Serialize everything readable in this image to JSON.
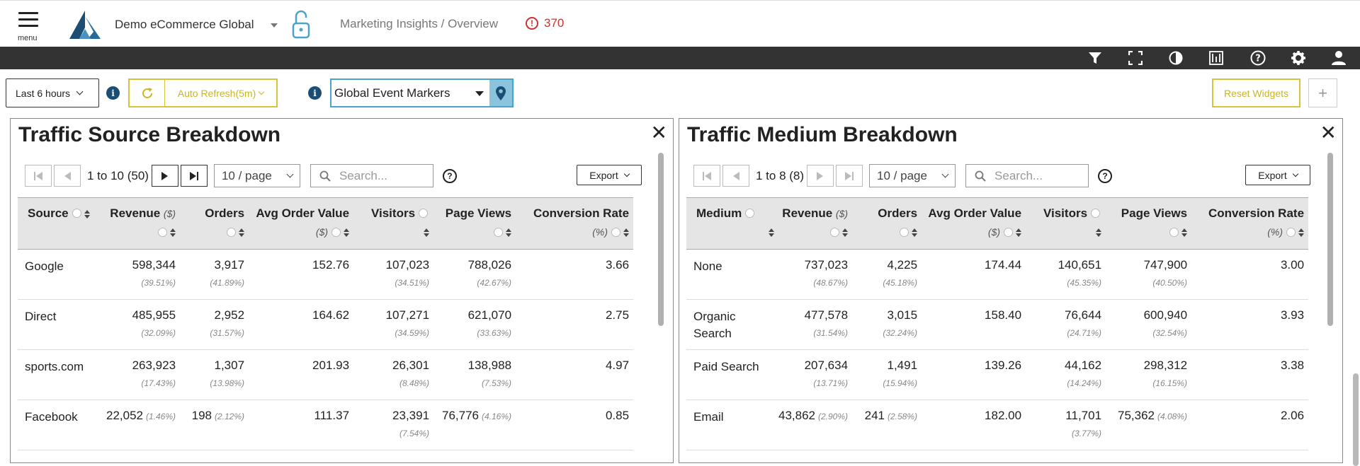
{
  "header": {
    "menu_label": "menu",
    "org_name": "Demo eCommerce Global",
    "breadcrumb": "Marketing Insights / Overview",
    "alert_count": "370"
  },
  "toolbar": {
    "icons": [
      "filter-icon",
      "fullscreen-icon",
      "contrast-icon",
      "presentation-icon",
      "help-icon",
      "gear-icon",
      "user-icon"
    ]
  },
  "controls": {
    "time_range": "Last 6 hours",
    "auto_refresh": "Auto Refresh(5m)",
    "event_markers": "Global Event Markers",
    "reset_widgets": "Reset Widgets",
    "add": "+"
  },
  "colors": {
    "toolbar_bg": "#333333",
    "accent_yellow": "#d8c43a",
    "accent_blue": "#4aa3c8",
    "info_navy": "#1c4e74",
    "alert_red": "#d32f2f"
  },
  "widgets": [
    {
      "title": "Traffic Source Breakdown",
      "pager_text": "1 to 10 (50)",
      "per_page": "10 / page",
      "search_placeholder": "Search...",
      "export_label": "Export",
      "columns": [
        "Source",
        "Revenue",
        "Orders",
        "Avg Order Value",
        "Visitors",
        "Page Views",
        "Conversion Rate"
      ],
      "units": {
        "revenue": "($)",
        "aov": "($)",
        "conversion": "(%)"
      },
      "rows": [
        {
          "name": "Google",
          "revenue": "598,344",
          "revenue_pct": "(39.51%)",
          "orders": "3,917",
          "orders_pct": "(41.89%)",
          "aov": "152.76",
          "visitors": "107,023",
          "visitors_pct": "(34.51%)",
          "pageviews": "788,026",
          "pageviews_pct": "(42.67%)",
          "conversion": "3.66"
        },
        {
          "name": "Direct",
          "revenue": "485,955",
          "revenue_pct": "(32.09%)",
          "orders": "2,952",
          "orders_pct": "(31.57%)",
          "aov": "164.62",
          "visitors": "107,271",
          "visitors_pct": "(34.59%)",
          "pageviews": "621,070",
          "pageviews_pct": "(33.63%)",
          "conversion": "2.75"
        },
        {
          "name": "sports.com",
          "revenue": "263,923",
          "revenue_pct": "(17.43%)",
          "orders": "1,307",
          "orders_pct": "(13.98%)",
          "aov": "201.93",
          "visitors": "26,301",
          "visitors_pct": "(8.48%)",
          "pageviews": "138,988",
          "pageviews_pct": "(7.53%)",
          "conversion": "4.97"
        },
        {
          "name": "Facebook",
          "revenue": "22,052",
          "revenue_pct": "(1.46%)",
          "orders": "198",
          "orders_pct": "(2.12%)",
          "aov": "111.37",
          "visitors": "23,391",
          "visitors_pct": "(7.54%)",
          "pageviews": "76,776",
          "pageviews_pct": "(4.16%)",
          "conversion": "0.85"
        }
      ]
    },
    {
      "title": "Traffic Medium Breakdown",
      "pager_text": "1 to 8 (8)",
      "per_page": "10 / page",
      "search_placeholder": "Search...",
      "export_label": "Export",
      "columns": [
        "Medium",
        "Revenue",
        "Orders",
        "Avg Order Value",
        "Visitors",
        "Page Views",
        "Conversion Rate"
      ],
      "units": {
        "revenue": "($)",
        "aov": "($)",
        "conversion": "(%)"
      },
      "rows": [
        {
          "name": "None",
          "revenue": "737,023",
          "revenue_pct": "(48.67%)",
          "orders": "4,225",
          "orders_pct": "(45.18%)",
          "aov": "174.44",
          "visitors": "140,651",
          "visitors_pct": "(45.35%)",
          "pageviews": "747,900",
          "pageviews_pct": "(40.50%)",
          "conversion": "3.00"
        },
        {
          "name": "Organic Search",
          "revenue": "477,578",
          "revenue_pct": "(31.54%)",
          "orders": "3,015",
          "orders_pct": "(32.24%)",
          "aov": "158.40",
          "visitors": "76,644",
          "visitors_pct": "(24.71%)",
          "pageviews": "600,940",
          "pageviews_pct": "(32.54%)",
          "conversion": "3.93"
        },
        {
          "name": "Paid Search",
          "revenue": "207,634",
          "revenue_pct": "(13.71%)",
          "orders": "1,491",
          "orders_pct": "(15.94%)",
          "aov": "139.26",
          "visitors": "44,162",
          "visitors_pct": "(14.24%)",
          "pageviews": "298,312",
          "pageviews_pct": "(16.15%)",
          "conversion": "3.38"
        },
        {
          "name": "Email",
          "revenue": "43,862",
          "revenue_pct": "(2.90%)",
          "orders": "241",
          "orders_pct": "(2.58%)",
          "aov": "182.00",
          "visitors": "11,701",
          "visitors_pct": "(3.77%)",
          "pageviews": "75,362",
          "pageviews_pct": "(4.08%)",
          "conversion": "2.06"
        }
      ]
    }
  ]
}
